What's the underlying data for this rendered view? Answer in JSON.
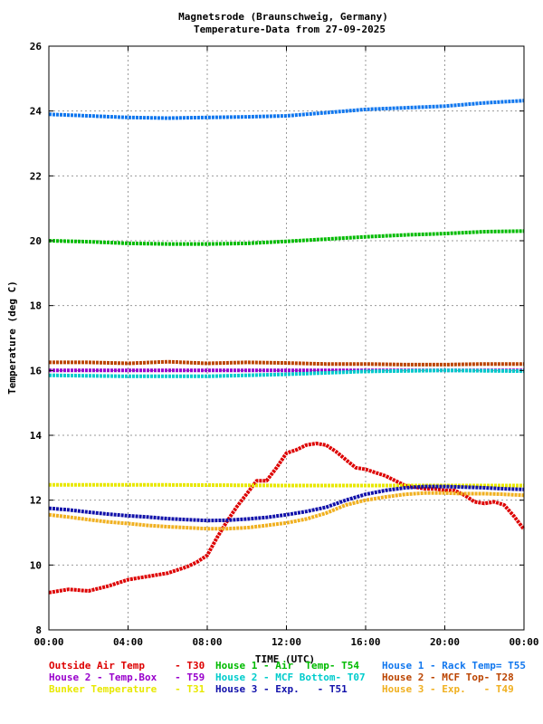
{
  "chart_data": {
    "type": "line",
    "title": "Magnetsrode (Braunschweig, Germany)",
    "subtitle": "Temperature-Data from 27-09-2025",
    "xlabel": "TIME (UTC)",
    "ylabel": "Temperature (deg C)",
    "xlim": [
      0,
      24
    ],
    "ylim": [
      8,
      26
    ],
    "x_ticks": [
      {
        "v": 0,
        "label": "00:00"
      },
      {
        "v": 4,
        "label": "04:00"
      },
      {
        "v": 8,
        "label": "08:00"
      },
      {
        "v": 12,
        "label": "12:00"
      },
      {
        "v": 16,
        "label": "16:00"
      },
      {
        "v": 20,
        "label": "20:00"
      },
      {
        "v": 24,
        "label": "00:00"
      }
    ],
    "y_ticks": [
      8,
      10,
      12,
      14,
      16,
      18,
      20,
      22,
      24,
      26
    ],
    "grid": true,
    "legend_position": "bottom",
    "series": [
      {
        "name": "Outside Air Temp",
        "sensor": "- T30",
        "color": "#dd0000",
        "x": [
          0,
          1,
          2,
          3,
          4,
          5,
          6,
          7,
          7.5,
          8,
          8.5,
          9,
          9.5,
          10,
          10.5,
          11,
          11.5,
          12,
          12.5,
          13,
          13.5,
          14,
          14.5,
          15,
          15.5,
          16,
          16.5,
          17,
          17.5,
          18,
          18.5,
          19,
          19.5,
          20,
          20.5,
          21,
          21.5,
          22,
          22.5,
          23,
          23.5,
          24
        ],
        "y": [
          9.15,
          9.25,
          9.2,
          9.35,
          9.55,
          9.65,
          9.75,
          9.95,
          10.1,
          10.3,
          10.85,
          11.35,
          11.8,
          12.2,
          12.6,
          12.6,
          13.0,
          13.45,
          13.55,
          13.7,
          13.75,
          13.7,
          13.5,
          13.25,
          13.0,
          12.95,
          12.85,
          12.75,
          12.6,
          12.45,
          12.4,
          12.35,
          12.35,
          12.3,
          12.3,
          12.15,
          11.95,
          11.9,
          11.95,
          11.85,
          11.5,
          11.1
        ]
      },
      {
        "name": "House 1 - Air  Temp",
        "sensor": "- T54",
        "color": "#00bb00",
        "x": [
          0,
          2,
          4,
          6,
          8,
          10,
          12,
          14,
          16,
          18,
          20,
          22,
          24
        ],
        "y": [
          20.0,
          19.97,
          19.92,
          19.9,
          19.9,
          19.92,
          19.98,
          20.05,
          20.12,
          20.18,
          20.22,
          20.28,
          20.3
        ]
      },
      {
        "name": "House 1 - Rack Temp",
        "sensor": "= T55",
        "color": "#1177ee",
        "x": [
          0,
          2,
          4,
          6,
          8,
          10,
          12,
          14,
          16,
          18,
          20,
          22,
          24
        ],
        "y": [
          23.9,
          23.85,
          23.8,
          23.78,
          23.8,
          23.82,
          23.85,
          23.95,
          24.05,
          24.1,
          24.15,
          24.25,
          24.32
        ]
      },
      {
        "name": "House 2 - Temp.Box",
        "sensor": "- T59",
        "color": "#9900cc",
        "x": [
          0,
          4,
          8,
          12,
          16,
          20,
          24
        ],
        "y": [
          16.0,
          16.0,
          16.0,
          16.0,
          16.0,
          16.0,
          16.0
        ]
      },
      {
        "name": "House 2 - MCF Bottom",
        "sensor": "- T07",
        "color": "#00cccc",
        "x": [
          0,
          4,
          8,
          12,
          16,
          20,
          24
        ],
        "y": [
          15.85,
          15.82,
          15.82,
          15.88,
          15.97,
          16.0,
          15.98
        ]
      },
      {
        "name": "House 2 - MCF Top",
        "sensor": "- T28",
        "color": "#bb4400",
        "x": [
          0,
          2,
          4,
          6,
          8,
          10,
          12,
          14,
          16,
          18,
          20,
          22,
          24
        ],
        "y": [
          16.25,
          16.25,
          16.22,
          16.27,
          16.22,
          16.25,
          16.23,
          16.2,
          16.2,
          16.18,
          16.18,
          16.2,
          16.2
        ]
      },
      {
        "name": "Bunker Temperature",
        "sensor": "- T31",
        "color": "#e8e800",
        "x": [
          0,
          6,
          12,
          18,
          24
        ],
        "y": [
          12.47,
          12.47,
          12.45,
          12.45,
          12.45
        ]
      },
      {
        "name": "House 3 - Exp.",
        "sensor": "- T51",
        "color": "#1111aa",
        "x": [
          0,
          1,
          2,
          3,
          4,
          5,
          6,
          7,
          8,
          9,
          10,
          11,
          12,
          13,
          14,
          15,
          16,
          17,
          18,
          19,
          20,
          21,
          22,
          23,
          24
        ],
        "y": [
          11.75,
          11.7,
          11.63,
          11.57,
          11.52,
          11.48,
          11.43,
          11.4,
          11.37,
          11.38,
          11.42,
          11.47,
          11.55,
          11.65,
          11.78,
          12.0,
          12.18,
          12.3,
          12.38,
          12.42,
          12.42,
          12.4,
          12.38,
          12.35,
          12.33
        ]
      },
      {
        "name": "House 3 - Exp.",
        "sensor": "- T49",
        "color": "#f0b020",
        "x": [
          0,
          1,
          2,
          3,
          4,
          5,
          6,
          7,
          8,
          9,
          10,
          11,
          12,
          13,
          14,
          15,
          16,
          17,
          18,
          19,
          20,
          21,
          22,
          23,
          24
        ],
        "y": [
          11.55,
          11.48,
          11.4,
          11.33,
          11.28,
          11.22,
          11.18,
          11.15,
          11.12,
          11.12,
          11.15,
          11.22,
          11.3,
          11.42,
          11.6,
          11.85,
          12.0,
          12.1,
          12.18,
          12.22,
          12.22,
          12.2,
          12.2,
          12.18,
          12.15
        ]
      }
    ]
  }
}
